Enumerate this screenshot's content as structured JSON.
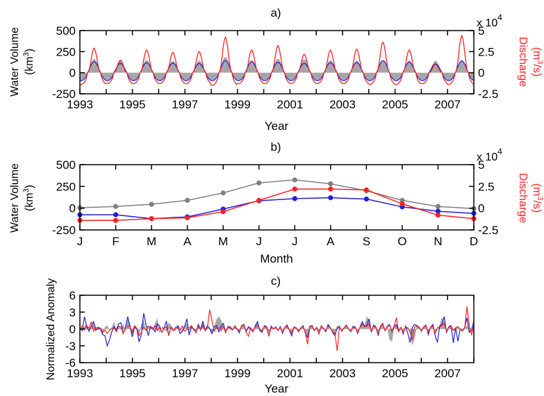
{
  "chart_data": [
    {
      "panel": "a)",
      "type": "line",
      "xlabel": "Year",
      "ylabel_left": "Water Volume",
      "ylabel_left_unit": "(km",
      "ylabel_right": "Discharge",
      "ylabel_right_unit": "(m",
      "ylabel_right_unit_tail": "/s)",
      "right_axis_scale": "x 10",
      "right_axis_scale_exp": "4",
      "xlim": [
        1993,
        2008
      ],
      "ylim_left": [
        -250,
        500
      ],
      "ylim_right": [
        -2.5,
        5
      ],
      "xticks": [
        "1993",
        "1995",
        "1997",
        "1999",
        "2001",
        "2003",
        "2005",
        "2007"
      ],
      "yticks_left": [
        "500",
        "250",
        "0",
        "-250"
      ],
      "yticks_right": [
        "5",
        "2.5",
        "0",
        "-2.5"
      ],
      "cycle": {
        "start_year": 1993,
        "end_year": 2008,
        "peak_month": 6.5,
        "gray_amplitudes": [
          165,
          150,
          150,
          140,
          145,
          185,
          150,
          165,
          160,
          150,
          145,
          140,
          145,
          140,
          150
        ],
        "blue_amplitudes": [
          130,
          110,
          120,
          115,
          110,
          145,
          130,
          125,
          110,
          120,
          120,
          145,
          125,
          105,
          140
        ],
        "red_peaks_e4": [
          2.9,
          1.5,
          2.7,
          2.4,
          2.5,
          4.2,
          2.7,
          3.2,
          2.2,
          2.7,
          2.8,
          3.6,
          2.7,
          1.0,
          4.4
        ],
        "red_troughs_e4": [
          -1.4,
          -1.3,
          -1.3,
          -1.3,
          -1.3,
          -1.5,
          -1.3,
          -1.3,
          -1.3,
          -1.3,
          -1.3,
          -1.4,
          -1.4,
          -1.3,
          -1.4
        ]
      },
      "series": [
        {
          "name": "Water Volume",
          "color": "#a6a6a6",
          "style": "area"
        },
        {
          "name": "Water Volume",
          "color": "#1f1fd6",
          "style": "line"
        },
        {
          "name": "Discharge",
          "color": "#ff2020",
          "style": "line"
        }
      ]
    },
    {
      "panel": "b)",
      "type": "line",
      "xlabel": "Month",
      "ylabel_left": "Water Volume",
      "ylabel_left_unit": "(km",
      "ylabel_right": "Discharge",
      "ylabel_right_unit": "(m",
      "ylabel_right_unit_tail": "/s)",
      "right_axis_scale": "x 10",
      "right_axis_scale_exp": "4",
      "categories": [
        "J",
        "F",
        "M",
        "A",
        "M",
        "J",
        "J",
        "A",
        "S",
        "O",
        "N",
        "D"
      ],
      "ylim_left": [
        -250,
        500
      ],
      "ylim_right": [
        -2.5,
        5
      ],
      "yticks_left": [
        "500",
        "250",
        "0",
        "-250"
      ],
      "yticks_right": [
        "5",
        "2.5",
        "0",
        "-2.5"
      ],
      "series": [
        {
          "name": "Water Volume",
          "color": "#808080",
          "axis": "left",
          "values": [
            5,
            20,
            45,
            90,
            175,
            290,
            325,
            280,
            200,
            90,
            20,
            -5
          ]
        },
        {
          "name": "Water Volume",
          "color": "#1f1fd6",
          "axis": "left",
          "values": [
            -75,
            -75,
            -120,
            -100,
            -10,
            85,
            110,
            120,
            105,
            15,
            -35,
            -60
          ]
        },
        {
          "name": "Discharge",
          "color": "#ff2020",
          "axis": "right",
          "values": [
            -1.4,
            -1.4,
            -1.2,
            -1.1,
            -0.4,
            0.9,
            2.2,
            2.2,
            2.1,
            0.5,
            -0.8,
            -1.2
          ]
        }
      ]
    },
    {
      "panel": "c)",
      "type": "line",
      "xlabel": "Year",
      "ylabel": "Normalized Anomaly",
      "xlim": [
        1993,
        2008
      ],
      "ylim": [
        -6,
        6
      ],
      "xticks": [
        "1993",
        "1995",
        "1997",
        "1999",
        "2001",
        "2003",
        "2005",
        "2007"
      ],
      "yticks": [
        "6",
        "3",
        "0",
        "-3",
        "-6"
      ],
      "series": [
        {
          "color": "#a6a6a6",
          "style": "area",
          "values": [
            0.3,
            -0.2,
            0.5,
            0.8,
            -0.4,
            0.2,
            1.0,
            -0.5,
            0.4,
            0.1,
            -0.8,
            0.3,
            0.6,
            -0.3,
            0.2,
            1.2,
            -0.6,
            0.4,
            0.0,
            0.8,
            -0.4,
            1.6,
            0.9,
            -1.2,
            0.5,
            0.2,
            -0.9,
            0.7,
            1.5,
            -0.5,
            0.3,
            0.6,
            -0.2,
            0.9,
            1.8,
            -0.8,
            0.4,
            0.2,
            -0.5,
            1.1,
            0.6,
            0.0,
            -0.4,
            0.8,
            0.2,
            -0.6,
            0.5,
            1.0,
            -0.3,
            0.7,
            0.0,
            -0.8,
            0.6,
            0.2,
            1.4,
            -0.5,
            0.3,
            0.0,
            -1.0,
            0.5,
            1.6,
            2.2,
            1.5,
            0.2,
            -0.8,
            0.6,
            0.4,
            -0.2,
            0.7,
            0.1,
            -0.4,
            0.6,
            0.9,
            -0.5,
            0.3,
            0.2,
            -0.6,
            0.8,
            1.1,
            0.0,
            -0.5,
            0.6,
            0.3,
            -0.7,
            0.5,
            0.0,
            0.4,
            -0.3,
            0.2,
            -0.6,
            0.3,
            0.7,
            -0.2,
            -0.9,
            0.4,
            0.2,
            -0.5,
            0.1,
            0.6,
            -0.8,
            -1.2,
            0.3,
            0.5,
            -0.3,
            0.2,
            -0.7,
            0.4,
            0.0,
            -0.4,
            0.6,
            0.2,
            -0.8,
            -1.0,
            0.3,
            0.5,
            -0.4,
            0.2,
            0.6,
            0.0,
            -0.5,
            0.4,
            0.2,
            -0.6,
            0.3,
            1.0,
            0.4,
            2.2,
            1.4,
            -0.5,
            0.6,
            0.2,
            -0.8,
            0.4,
            0.9,
            -0.3,
            0.5,
            -1.8,
            -2.2,
            0.4,
            0.6,
            -0.5,
            0.3,
            -0.9,
            0.5,
            0.2,
            -0.6,
            -2.8,
            -1.5,
            0.6,
            0.3,
            -0.4,
            0.5,
            0.8,
            -0.8,
            0.3,
            0.6,
            -1.0,
            0.2,
            0.5,
            2.0,
            1.2,
            -0.6,
            0.4,
            0.6,
            -0.3,
            0.2,
            0.5,
            0.0,
            -0.4,
            0.3,
            0.6,
            -0.6,
            0.2,
            0.5
          ]
        },
        {
          "color": "#1f1fd6",
          "style": "line",
          "values": [
            0.2,
            -0.3,
            2.2,
            0.4,
            -0.4,
            0.5,
            1.3,
            -0.2,
            0.3,
            0.0,
            -1.0,
            -1.2,
            -3.0,
            -2.0,
            -0.5,
            0.4,
            -0.2,
            0.9,
            1.1,
            -0.8,
            0.3,
            2.2,
            0.5,
            -1.4,
            0.4,
            0.0,
            -2.3,
            -1.0,
            2.8,
            0.9,
            -1.2,
            0.4,
            0.2,
            -0.5,
            0.9,
            0.5,
            -0.6,
            0.1,
            1.4,
            -1.2,
            0.3,
            -0.3,
            0.2,
            0.5,
            -0.8,
            -0.4,
            0.5,
            1.8,
            -1.1,
            0.4,
            0.0,
            -0.6,
            0.8,
            -0.2,
            1.4,
            -0.3,
            0.6,
            0.1,
            -0.8,
            0.4,
            0.6,
            -0.5,
            0.5,
            1.0,
            -0.6,
            0.3,
            0.4,
            -0.2,
            0.5,
            0.0,
            -0.7,
            0.6,
            0.8,
            -0.5,
            0.4,
            0.0,
            -0.5,
            0.5,
            1.3,
            -0.3,
            -0.6,
            0.6,
            0.4,
            -1.3,
            0.5,
            0.0,
            0.4,
            -0.3,
            0.4,
            -0.8,
            0.3,
            0.7,
            -0.2,
            -1.2,
            0.4,
            0.2,
            -0.5,
            0.1,
            0.6,
            -0.8,
            -1.5,
            0.5,
            0.6,
            -0.3,
            0.3,
            -0.9,
            0.5,
            0.1,
            -0.5,
            0.8,
            0.2,
            -0.6,
            -1.2,
            0.3,
            0.5,
            -0.4,
            0.2,
            0.7,
            0.0,
            -0.5,
            0.5,
            0.3,
            -0.8,
            0.3,
            1.3,
            0.5,
            0.6,
            1.8,
            -0.6,
            0.7,
            0.4,
            -1.2,
            0.5,
            1.0,
            -0.3,
            0.5,
            0.8,
            -0.4,
            0.4,
            0.8,
            -0.5,
            0.3,
            -0.9,
            0.5,
            -0.8,
            -2.4,
            0.3,
            0.8,
            0.6,
            0.3,
            -0.4,
            0.4,
            0.6,
            -1.0,
            0.3,
            0.8,
            -1.2,
            -2.4,
            0.5,
            0.8,
            2.2,
            -0.6,
            0.4,
            0.6,
            -2.5,
            0.2,
            -2.2,
            0.0,
            -0.4,
            0.3,
            2.0,
            -0.6,
            -0.3,
            1.4
          ]
        },
        {
          "color": "#ff2020",
          "style": "line",
          "values": [
            0.0,
            0.5,
            -0.2,
            0.6,
            0.1,
            1.2,
            -0.4,
            0.3,
            -0.1,
            0.2,
            -0.6,
            -0.2,
            -0.8,
            -0.3,
            0.1,
            0.2,
            -0.5,
            0.5,
            0.3,
            -0.8,
            0.2,
            0.5,
            0.4,
            -0.6,
            0.6,
            0.1,
            -1.2,
            -0.5,
            0.3,
            -0.2,
            0.5,
            0.2,
            -0.1,
            0.6,
            -0.3,
            0.3,
            -0.6,
            0.1,
            0.4,
            -1.0,
            0.2,
            -0.3,
            0.3,
            0.1,
            -0.2,
            0.5,
            -0.4,
            -0.1,
            0.2,
            0.6,
            -0.2,
            -0.5,
            0.4,
            -0.1,
            0.6,
            -0.3,
            0.2,
            3.4,
            1.5,
            -0.4,
            0.3,
            0.2,
            -0.3,
            0.5,
            -0.6,
            0.4,
            0.1,
            -0.2,
            0.5,
            -0.1,
            -0.4,
            0.5,
            0.8,
            -0.6,
            -1.3,
            0.2,
            -0.5,
            0.4,
            0.6,
            0.0,
            -0.4,
            0.5,
            0.2,
            -1.2,
            0.3,
            0.0,
            0.3,
            -0.2,
            0.2,
            -0.6,
            0.3,
            0.5,
            -0.2,
            -0.7,
            0.4,
            0.1,
            -0.4,
            0.2,
            0.4,
            -0.7,
            -2.7,
            0.4,
            0.5,
            -0.3,
            0.2,
            -0.8,
            0.6,
            0.0,
            -0.3,
            0.5,
            0.2,
            -0.5,
            -0.9,
            -3.9,
            0.4,
            -0.3,
            0.2,
            0.6,
            0.0,
            -0.4,
            0.3,
            0.2,
            -0.6,
            0.3,
            0.8,
            0.4,
            0.5,
            0.9,
            -0.4,
            0.5,
            0.3,
            -0.9,
            0.4,
            0.9,
            -0.3,
            0.4,
            0.6,
            -0.3,
            0.5,
            2.0,
            -0.4,
            0.3,
            -0.7,
            0.4,
            0.2,
            -0.6,
            -2.0,
            0.4,
            0.5,
            0.2,
            -0.3,
            0.4,
            0.5,
            -0.6,
            0.3,
            0.5,
            -0.8,
            0.2,
            0.4,
            0.6,
            1.0,
            -0.5,
            0.3,
            0.5,
            -0.3,
            0.2,
            0.4,
            0.0,
            -0.3,
            0.3,
            4.0,
            0.6,
            -1.0,
            0.4
          ]
        }
      ]
    }
  ]
}
